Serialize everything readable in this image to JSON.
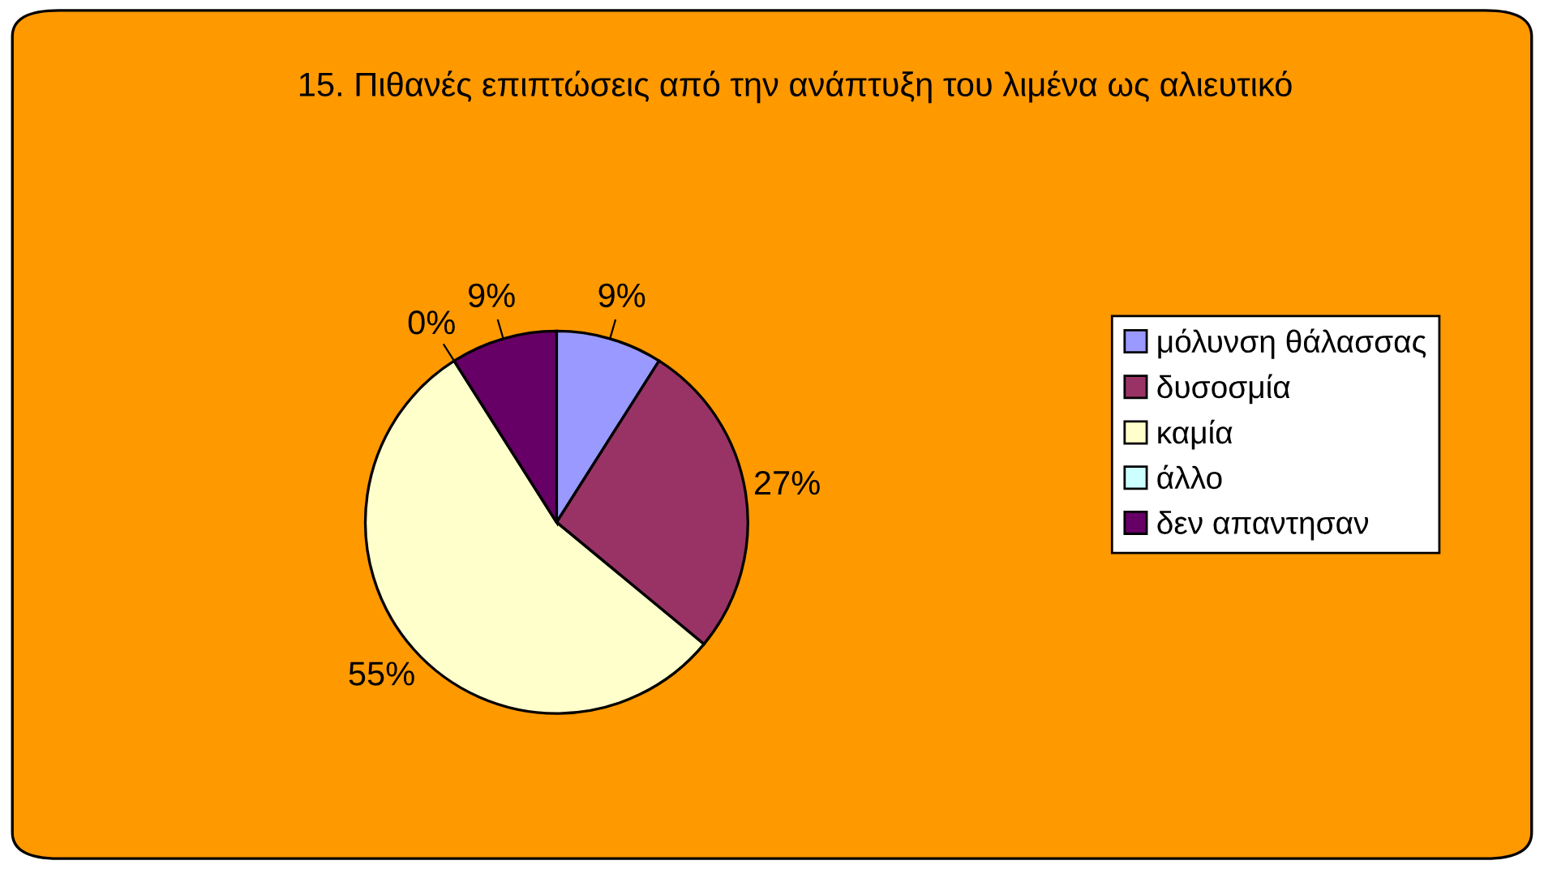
{
  "chart_data": {
    "type": "pie",
    "title": "15. Πιθανές επιπτώσεις από την ανάπτυξη του λιμένα ως αλιευτικό",
    "categories": [
      "μόλυνση θάλασσας",
      "δυσοσμία",
      "καμία",
      "άλλο",
      "δεν απαντησαν"
    ],
    "values": [
      9,
      27,
      55,
      0,
      9
    ],
    "value_labels": [
      "9%",
      "27%",
      "55%",
      "0%",
      "9%"
    ],
    "colors": [
      "#9999ff",
      "#993366",
      "#ffffcc",
      "#ccffff",
      "#660066"
    ],
    "legend": "right"
  }
}
